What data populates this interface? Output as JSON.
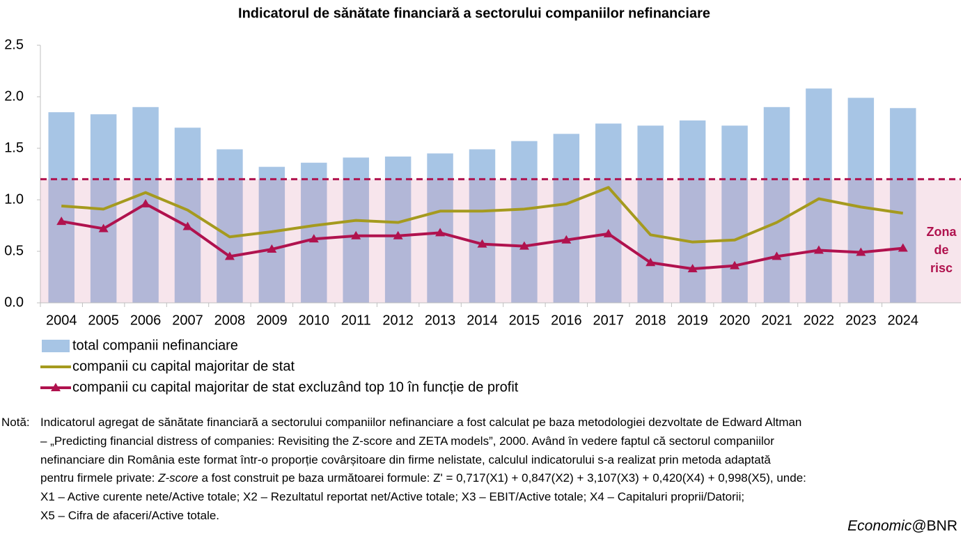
{
  "chart_data": {
    "type": "bar",
    "title": "Indicatorul de sănătate financiară a sectorului companiilor nefinanciare",
    "categories": [
      "2004",
      "2005",
      "2006",
      "2007",
      "2008",
      "2009",
      "2010",
      "2011",
      "2012",
      "2013",
      "2014",
      "2015",
      "2016",
      "2017",
      "2018",
      "2019",
      "2020",
      "2021",
      "2022",
      "2023",
      "2024"
    ],
    "series": [
      {
        "name": "total companii nefinanciare",
        "type": "bar",
        "color": "#a7c5e5",
        "values": [
          1.85,
          1.83,
          1.9,
          1.7,
          1.49,
          1.32,
          1.36,
          1.41,
          1.42,
          1.45,
          1.49,
          1.57,
          1.64,
          1.74,
          1.72,
          1.77,
          1.72,
          1.9,
          2.08,
          1.99,
          1.89
        ]
      },
      {
        "name": "companii cu capital majoritar de stat",
        "type": "line",
        "color": "#a59a1e",
        "values": [
          0.94,
          0.91,
          1.07,
          0.9,
          0.64,
          0.69,
          0.75,
          0.8,
          0.78,
          0.89,
          0.89,
          0.91,
          0.96,
          1.12,
          0.66,
          0.59,
          0.61,
          0.78,
          1.01,
          0.93,
          0.87
        ]
      },
      {
        "name": "companii cu capital majoritar de stat excluzând top 10 în funcție de profit",
        "type": "line",
        "marker": "triangle",
        "color": "#b0124e",
        "values": [
          0.79,
          0.72,
          0.96,
          0.74,
          0.45,
          0.52,
          0.62,
          0.65,
          0.65,
          0.68,
          0.57,
          0.55,
          0.61,
          0.67,
          0.39,
          0.33,
          0.36,
          0.45,
          0.51,
          0.49,
          0.53
        ]
      }
    ],
    "ylim": [
      0,
      2.5
    ],
    "yticks": [
      {
        "value": 0,
        "label": "0.0"
      },
      {
        "value": 0.5,
        "label": "0.5"
      },
      {
        "value": 1,
        "label": "1.0"
      },
      {
        "value": 1.5,
        "label": "1.5"
      },
      {
        "value": 2,
        "label": "2.0"
      },
      {
        "value": 2.5,
        "label": "2.5"
      }
    ],
    "grid": false,
    "risk_zone": {
      "value": 1.2,
      "color": "#b0124e",
      "label_lines": [
        "Zona",
        "de",
        "risc"
      ]
    }
  },
  "note": {
    "label": "Notă:",
    "lines": [
      [
        "Indicatorul agregat de sănătate financiară a sectorului companiilor nefinanciare a fost calculat pe baza metodologiei dezvoltate de Edward Altman"
      ],
      [
        "– „Predicting financial distress of companies: Revisiting the Z-score and ZETA models”, 2000. Având în vedere faptul că sectorul companiilor"
      ],
      [
        "nefinanciare din România este format într-o proporție covârșitoare din firme nelistate, calculul indicatorului s-a realizat prin metoda adaptată"
      ],
      [
        "pentru firmele private: ",
        "Z-score",
        " a fost construit pe baza următoarei formule: Z' = 0,717(X1) + 0,847(X2) + 3,107(X3) + 0,420(X4) + 0,998(X5), unde:"
      ],
      [
        "X1 – Active curente nete/Active totale; X2 – Rezultatul reportat net/Active totale; X3 – EBIT/Active totale; X4 – Capitaluri proprii/Datorii;"
      ],
      [
        "X5 – Cifra de afaceri/Active totale."
      ]
    ]
  },
  "source": [
    "Economic",
    "@BNR"
  ]
}
